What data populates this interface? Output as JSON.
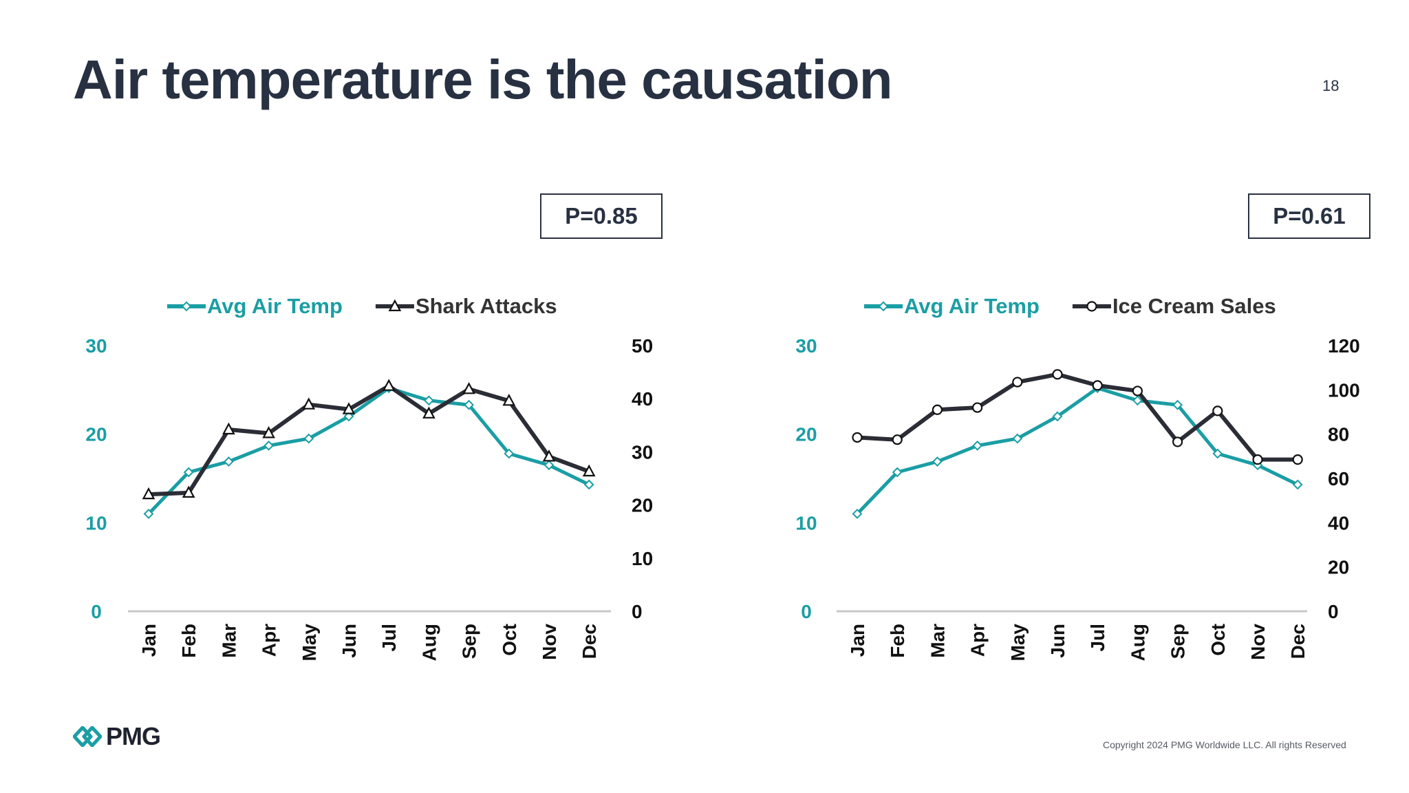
{
  "slide": {
    "title": "Air temperature is the causation",
    "page_number": "18",
    "copyright": "Copyright 2024 PMG Worldwide LLC. All rights Reserved",
    "logo_text": "PMG"
  },
  "colors": {
    "teal": "#1a9ea4",
    "dark": "#2b2d36",
    "text_dark": "#283142",
    "axis_gray": "#c8c8c8"
  },
  "chart_data": [
    {
      "type": "line",
      "p_value_label": "P=0.85",
      "categories": [
        "Jan",
        "Feb",
        "Mar",
        "Apr",
        "May",
        "Jun",
        "Jul",
        "Aug",
        "Sep",
        "Oct",
        "Nov",
        "Dec"
      ],
      "series": [
        {
          "name": "Avg Air Temp",
          "axis": "left",
          "marker": "diamond",
          "values": [
            11.0,
            15.7,
            16.9,
            18.7,
            19.5,
            22.0,
            25.2,
            23.8,
            23.3,
            17.8,
            16.5,
            14.3
          ]
        },
        {
          "name": "Shark Attacks",
          "axis": "right",
          "marker": "triangle",
          "values": [
            22,
            22.3,
            34.2,
            33.5,
            38.9,
            38.0,
            42.4,
            37.2,
            41.8,
            39.6,
            29.1,
            26.3
          ]
        }
      ],
      "y_left": {
        "min": 0,
        "max": 30,
        "ticks": [
          0,
          10,
          20,
          30
        ]
      },
      "y_right": {
        "min": 0,
        "max": 50,
        "ticks": [
          0,
          10,
          20,
          30,
          40,
          50
        ]
      },
      "legend_position": "top"
    },
    {
      "type": "line",
      "p_value_label": "P=0.61",
      "categories": [
        "Jan",
        "Feb",
        "Mar",
        "Apr",
        "May",
        "Jun",
        "Jul",
        "Aug",
        "Sep",
        "Oct",
        "Nov",
        "Dec"
      ],
      "series": [
        {
          "name": "Avg Air Temp",
          "axis": "left",
          "marker": "diamond",
          "values": [
            11.0,
            15.7,
            16.9,
            18.7,
            19.5,
            22.0,
            25.2,
            23.8,
            23.3,
            17.8,
            16.5,
            14.3
          ]
        },
        {
          "name": "Ice Cream Sales",
          "axis": "right",
          "marker": "circle",
          "values": [
            78.5,
            77.5,
            91,
            92,
            103.5,
            107,
            102,
            99.5,
            76.5,
            90.5,
            68.5,
            68.5
          ]
        }
      ],
      "y_left": {
        "min": 0,
        "max": 30,
        "ticks": [
          0,
          10,
          20,
          30
        ]
      },
      "y_right": {
        "min": 0,
        "max": 120,
        "ticks": [
          0,
          20,
          40,
          60,
          80,
          100,
          120
        ]
      },
      "legend_position": "top"
    }
  ]
}
